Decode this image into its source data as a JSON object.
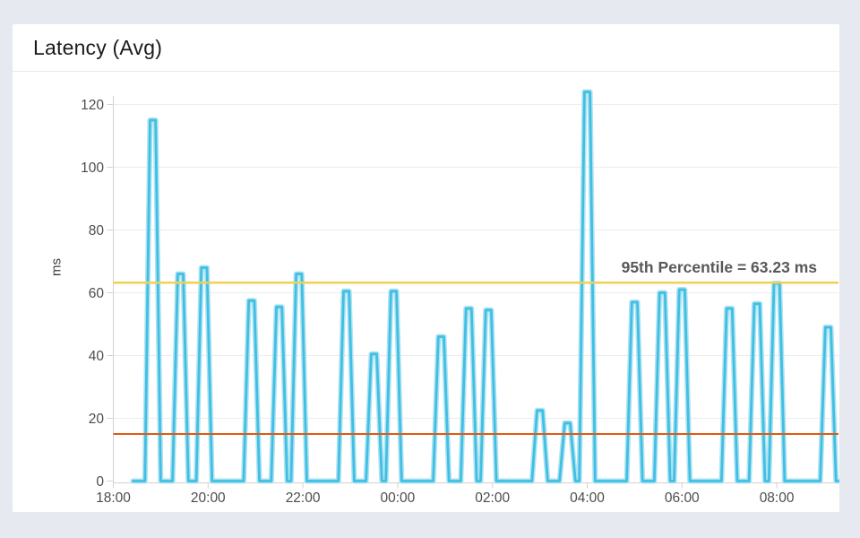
{
  "page": {
    "background_color": "#e6e9f0"
  },
  "card": {
    "background_color": "#ffffff"
  },
  "chart_data": {
    "type": "line",
    "title": "Latency (Avg)",
    "ylabel": "ms",
    "ylim": [
      0,
      126
    ],
    "yticks": [
      0,
      20,
      40,
      60,
      80,
      100,
      120
    ],
    "xtick_labels": [
      "18:00",
      "20:00",
      "22:00",
      "00:00",
      "02:00",
      "04:00",
      "06:00",
      "08:00"
    ],
    "x_start_label": "18:00",
    "x_end_label": "09:18",
    "minutes_per_tick": 120,
    "grid": "horizontal",
    "legend": "none",
    "series": [
      {
        "name": "Latency (Avg)",
        "unit": "ms",
        "color": "#41bfe2",
        "halo_color": "#aee3f3",
        "baseline_value": 0,
        "data_start_time": "18:25",
        "data_end_time": "09:18",
        "spike_rise_minutes": 10,
        "spike_top_halfwidth_minutes": 3.5,
        "spikes": [
          [
            "18:50",
            115
          ],
          [
            "19:25",
            66
          ],
          [
            "19:55",
            68
          ],
          [
            "20:55",
            57.5
          ],
          [
            "21:30",
            55.5
          ],
          [
            "21:55",
            66
          ],
          [
            "22:55",
            60.5
          ],
          [
            "23:30",
            40.5
          ],
          [
            "23:55",
            60.5
          ],
          [
            "00:55",
            46
          ],
          [
            "01:30",
            55
          ],
          [
            "01:55",
            54.5
          ],
          [
            "03:00",
            22.5
          ],
          [
            "03:35",
            18.5
          ],
          [
            "04:00",
            124
          ],
          [
            "05:00",
            57
          ],
          [
            "05:35",
            60
          ],
          [
            "06:00",
            61
          ],
          [
            "07:00",
            55
          ],
          [
            "07:35",
            56.5
          ],
          [
            "08:00",
            63
          ],
          [
            "09:05",
            49
          ]
        ]
      }
    ],
    "reference_lines": [
      {
        "name": "95th-percentile",
        "label": "95th Percentile = 63.23 ms",
        "value": 63.23,
        "color": "#efd153"
      },
      {
        "name": "lower-threshold",
        "label": "",
        "value": 15,
        "color": "#e05a10"
      }
    ],
    "colors": {
      "grid": "#ececec",
      "axis": "#d2d2d2",
      "tick_label": "#4d4d4d",
      "axis_label": "#3d3d3d",
      "annotation_text": "#58585a"
    }
  }
}
